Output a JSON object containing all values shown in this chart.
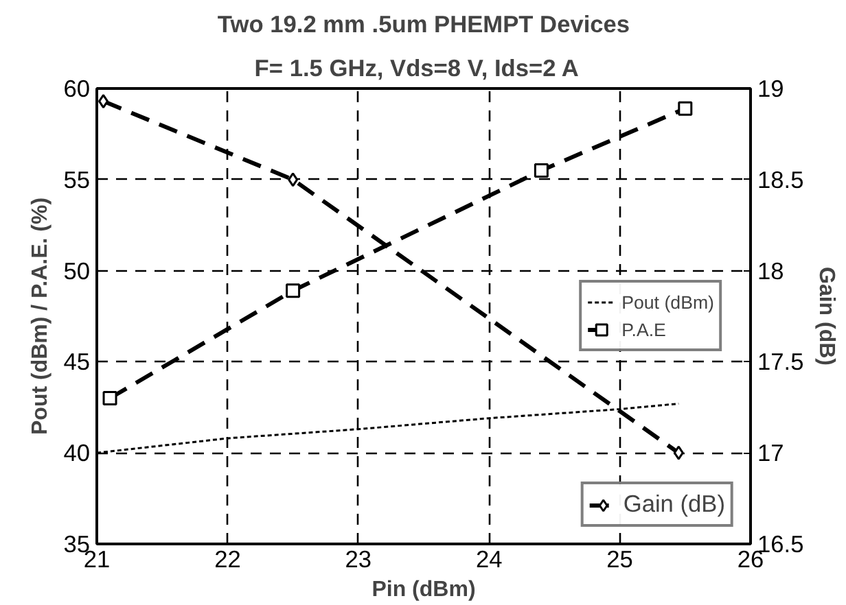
{
  "chart_data": {
    "type": "line",
    "title": "Two 19.2 mm .5um PHEMPT Devices",
    "subtitle": "F= 1.5 GHz,  Vds=8 V,  Ids=2 A",
    "xlabel": "Pin (dBm)",
    "ylabel": "Pout (dBm) / P.A.E. (%)",
    "y2label": "Gain (dB)",
    "xlim": [
      21,
      26
    ],
    "xticks": [
      21,
      22,
      23,
      24,
      25,
      26
    ],
    "ylim": [
      35,
      60
    ],
    "yticks": [
      35,
      40,
      45,
      50,
      55,
      60
    ],
    "y2lim": [
      16.5,
      19
    ],
    "y2ticks": [
      16.5,
      17,
      17.5,
      18,
      18.5,
      19
    ],
    "grid": true,
    "legend": "right",
    "series": [
      {
        "name": "Pout (dBm)",
        "color": "#000000",
        "x": [
          21,
          22,
          23,
          24,
          25,
          25.45
        ],
        "values": [
          40.0,
          40.8,
          41.3,
          41.9,
          42.4,
          42.7
        ],
        "line_style": "dotted",
        "marker": "none"
      },
      {
        "name": "P.A.E",
        "color": "#000000",
        "x": [
          21.1,
          22.5,
          24.4,
          25.5
        ],
        "values": [
          43.0,
          48.9,
          55.5,
          58.9
        ],
        "line_style": "dashed",
        "marker": "square"
      },
      {
        "name": "Gain (dB)",
        "color": "#000000",
        "x": [
          21.05,
          22.5,
          25.45
        ],
        "values": [
          18.93,
          18.5,
          17.0
        ],
        "line_style": "dashed",
        "marker": "diamond",
        "axis": "y2"
      }
    ]
  }
}
